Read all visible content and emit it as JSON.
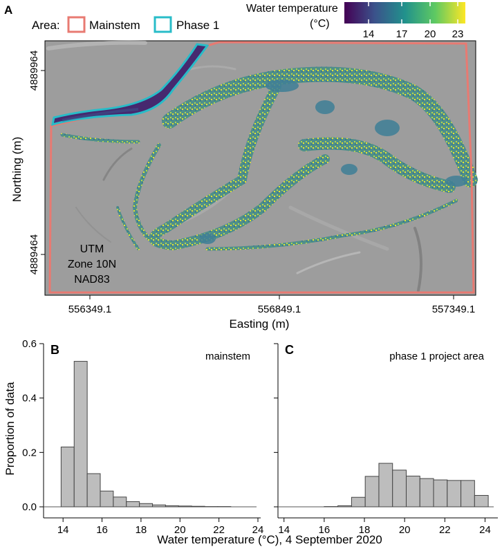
{
  "map_panel": {
    "label": "A",
    "legend_label": "Area:",
    "legend_items": [
      {
        "name": "Mainstem",
        "color": "#e87a72"
      },
      {
        "name": "Phase 1",
        "color": "#28bcc8"
      }
    ],
    "colorbar": {
      "title": "Water temperature",
      "unit": "(°C)",
      "ticks": [
        "14",
        "17",
        "20",
        "23"
      ],
      "range": [
        13,
        24
      ],
      "colormap": "viridis"
    },
    "xlabel": "Easting (m)",
    "ylabel": "Northing (m)",
    "xticks": [
      "556349.1",
      "556849.1",
      "557349.1"
    ],
    "yticks": [
      "4889964",
      "4889464"
    ],
    "crs_note": [
      "UTM",
      "Zone 10N",
      "NAD83"
    ]
  },
  "shared_xlabel": "Water temperature (°C), 4 September 2020",
  "chart_data": [
    {
      "panel": "B",
      "type": "bar",
      "annotation": "mainstem",
      "ylabel": "Proportion of data",
      "xlim": [
        13,
        24
      ],
      "ylim": [
        0,
        0.6
      ],
      "xticks": [
        14,
        16,
        18,
        20,
        22,
        24
      ],
      "yticks": [
        0.0,
        0.2,
        0.4,
        0.6
      ],
      "bin_width": 0.67,
      "bin_starts": [
        13.9,
        14.57,
        15.24,
        15.91,
        16.58,
        17.25,
        17.92,
        18.59,
        19.26,
        19.93,
        20.6,
        21.27,
        21.94,
        22.61,
        23.28
      ],
      "values": [
        0.22,
        0.535,
        0.122,
        0.058,
        0.036,
        0.019,
        0.012,
        0.007,
        0.004,
        0.003,
        0.002,
        0.001,
        0.001,
        0.0,
        0.0
      ],
      "bar_color": "#bdbdbd"
    },
    {
      "panel": "C",
      "type": "bar",
      "annotation": "phase 1 project area",
      "xlim": [
        13.7,
        24.5
      ],
      "ylim": [
        0,
        0.6
      ],
      "xticks": [
        14,
        16,
        18,
        20,
        22,
        24
      ],
      "yticks": [
        0.0,
        0.2,
        0.4,
        0.6
      ],
      "bin_width": 0.68,
      "bin_starts": [
        13.96,
        14.64,
        15.32,
        16.0,
        16.68,
        17.36,
        18.04,
        18.72,
        19.4,
        20.08,
        20.76,
        21.44,
        22.12,
        22.8,
        23.48
      ],
      "values": [
        0.0,
        0.0,
        0.0,
        0.001,
        0.004,
        0.035,
        0.112,
        0.16,
        0.135,
        0.113,
        0.104,
        0.099,
        0.097,
        0.097,
        0.042
      ],
      "bar_color": "#bdbdbd"
    }
  ]
}
